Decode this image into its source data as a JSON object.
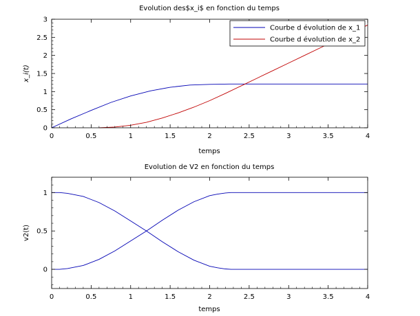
{
  "chart_data": [
    {
      "type": "line",
      "title": "Evolution des$x_i$ en fonction du temps",
      "xlabel": "temps",
      "ylabel": "x_i(t)",
      "xlim": [
        0,
        4
      ],
      "ylim": [
        0,
        3
      ],
      "xticks": [
        0,
        0.5,
        1,
        1.5,
        2,
        2.5,
        3,
        3.5,
        4
      ],
      "yticks": [
        0,
        0.5,
        1,
        1.5,
        2,
        2.5,
        3
      ],
      "xtick_labels": [
        "0",
        "0.5",
        "1",
        "1.5",
        "2",
        "2.5",
        "3",
        "3.5",
        "4"
      ],
      "ytick_labels": [
        "0",
        "0.5",
        "1",
        "1.5",
        "2",
        "2.5",
        "3"
      ],
      "grid": false,
      "legend_position": "top-right",
      "series": [
        {
          "name": "Courbe d évolution de x_1",
          "color": "#0000b4",
          "x": [
            0,
            0.25,
            0.5,
            0.75,
            1,
            1.25,
            1.5,
            1.75,
            2,
            2.25,
            2.5,
            3,
            3.5,
            4
          ],
          "y": [
            0,
            0.25,
            0.48,
            0.7,
            0.88,
            1.02,
            1.12,
            1.18,
            1.2,
            1.21,
            1.21,
            1.21,
            1.21,
            1.21
          ]
        },
        {
          "name": "Courbe d évolution de x_2",
          "color": "#c00000",
          "x": [
            0.6,
            0.8,
            1,
            1.2,
            1.4,
            1.6,
            1.8,
            2,
            2.2,
            2.4,
            2.6,
            2.8,
            3,
            3.2,
            3.4,
            3.6,
            3.8,
            4
          ],
          "y": [
            0,
            0.02,
            0.07,
            0.15,
            0.27,
            0.41,
            0.57,
            0.75,
            0.95,
            1.16,
            1.37,
            1.58,
            1.79,
            2.0,
            2.21,
            2.42,
            2.63,
            2.84
          ]
        }
      ]
    },
    {
      "type": "line",
      "title": "Evolution de V2 en fonction du temps",
      "xlabel": "temps",
      "ylabel": "v2(t)",
      "xlim": [
        0,
        4
      ],
      "ylim": [
        -0.25,
        1.2
      ],
      "xticks": [
        0,
        0.5,
        1,
        1.5,
        2,
        2.5,
        3,
        3.5,
        4
      ],
      "yticks": [
        0,
        0.5,
        1
      ],
      "xtick_labels": [
        "0",
        "0.5",
        "1",
        "1.5",
        "2",
        "2.5",
        "3",
        "3.5",
        "4"
      ],
      "ytick_labels": [
        "0",
        "0.5",
        "1"
      ],
      "grid": false,
      "series": [
        {
          "color": "#0000b4",
          "x": [
            0,
            0.1,
            0.2,
            0.4,
            0.6,
            0.8,
            1.0,
            1.2,
            1.4,
            1.6,
            1.8,
            2.0,
            2.1,
            2.2,
            2.27,
            2.5,
            3,
            3.5,
            4
          ],
          "y": [
            1,
            1,
            0.99,
            0.95,
            0.87,
            0.76,
            0.63,
            0.5,
            0.36,
            0.23,
            0.12,
            0.04,
            0.02,
            0.005,
            0,
            0,
            0,
            0,
            0
          ]
        },
        {
          "color": "#0000b4",
          "x": [
            0,
            0.1,
            0.2,
            0.4,
            0.6,
            0.8,
            1.0,
            1.2,
            1.4,
            1.6,
            1.8,
            2.0,
            2.1,
            2.2,
            2.27,
            2.5,
            3,
            3.5,
            4
          ],
          "y": [
            0,
            0,
            0.01,
            0.05,
            0.13,
            0.24,
            0.37,
            0.5,
            0.64,
            0.77,
            0.88,
            0.96,
            0.98,
            0.995,
            1,
            1,
            1,
            1,
            1
          ]
        }
      ]
    }
  ]
}
